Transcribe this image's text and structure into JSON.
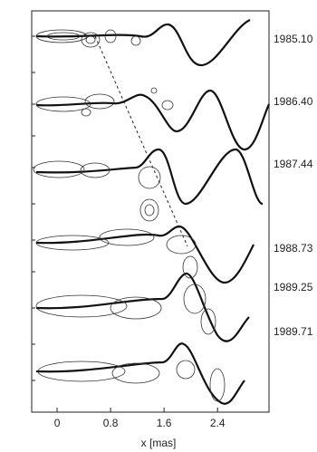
{
  "chart_data": {
    "type": "contour-sequence",
    "xlabel": "x  [mas]",
    "xlim": [
      -0.38,
      3.17
    ],
    "xticks": [
      0,
      0.8,
      1.6,
      2.4
    ],
    "epochs": [
      "1985.10",
      "1986.40",
      "1987.44",
      "1988.73",
      "1989.25",
      "1989.71"
    ]
  }
}
